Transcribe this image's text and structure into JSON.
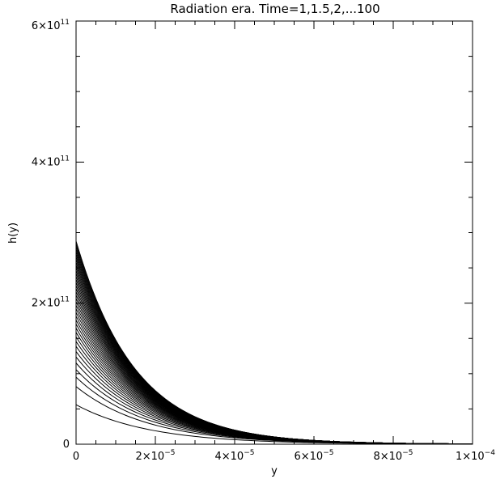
{
  "chart_data": {
    "type": "line",
    "title": "Radiation era.  Time=1,1.5,2,...100",
    "xlabel": "y",
    "ylabel": "h(y)",
    "xlim": [
      0,
      0.0001
    ],
    "ylim": [
      0,
      600000000000
    ],
    "x_ticks": [
      {
        "value": 0,
        "mantissa": "0",
        "exponent": ""
      },
      {
        "value": 2e-05,
        "mantissa": "2×10",
        "exponent": "−5"
      },
      {
        "value": 4e-05,
        "mantissa": "4×10",
        "exponent": "−5"
      },
      {
        "value": 6e-05,
        "mantissa": "6×10",
        "exponent": "−5"
      },
      {
        "value": 8e-05,
        "mantissa": "8×10",
        "exponent": "−5"
      },
      {
        "value": 0.0001,
        "mantissa": "1×10",
        "exponent": "−4"
      }
    ],
    "y_ticks": [
      {
        "value": 0,
        "mantissa": "0",
        "exponent": ""
      },
      {
        "value": 200000000000,
        "mantissa": "2×10",
        "exponent": "11"
      },
      {
        "value": 400000000000,
        "mantissa": "4×10",
        "exponent": "11"
      },
      {
        "value": 600000000000,
        "mantissa": "6×10",
        "exponent": "11"
      }
    ],
    "x": [
      0,
      1e-05,
      2e-05,
      3e-05,
      4e-05,
      5e-05,
      6e-05,
      7e-05,
      8e-05,
      9e-05,
      0.0001
    ],
    "series_family": {
      "count": 40,
      "x_at_zero_range": [
        56000000000,
        288000000000
      ],
      "decay_length_range": [
        1.85e-05,
        1.5e-05
      ],
      "color": "#000000"
    },
    "grid": false
  }
}
